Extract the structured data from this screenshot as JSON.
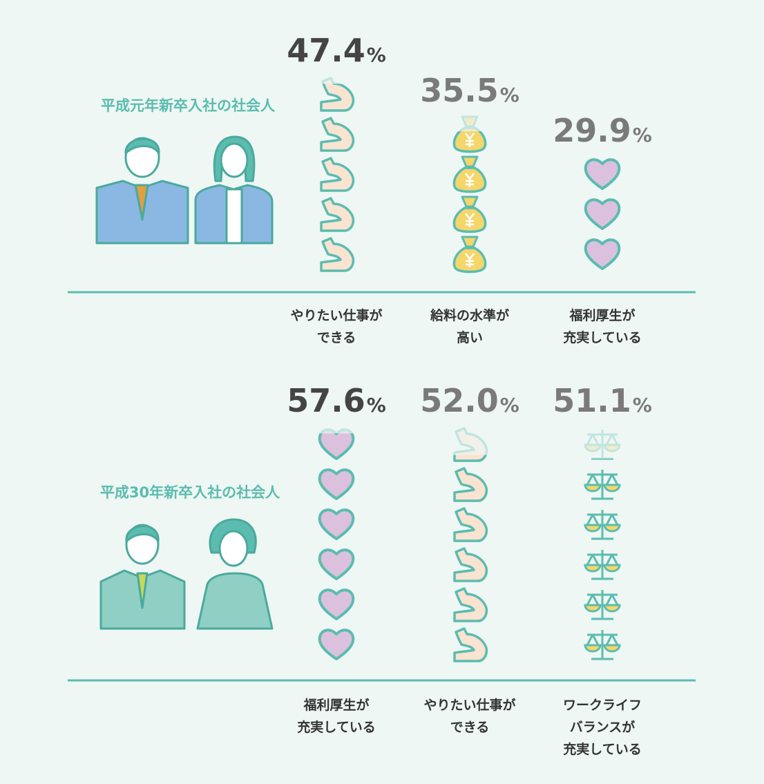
{
  "chart_data": [
    {
      "type": "pictogram",
      "title": "平成元年新卒入社の社会人",
      "categories": [
        "やりたい仕事が\nできる",
        "給料の水準が\n高い",
        "福利厚生が\n充実している"
      ],
      "values": [
        47.4,
        35.5,
        29.9
      ],
      "value_labels": [
        "47.4%",
        "35.5%",
        "29.9%"
      ]
    },
    {
      "type": "pictogram",
      "title": "平成30年新卒入社の社会人",
      "categories": [
        "福利厚生が\n充実している",
        "やりたい仕事が\nできる",
        "ワークライフ\nバランスが\n充実している"
      ],
      "values": [
        57.6,
        52.0,
        51.1
      ],
      "value_labels": [
        "57.6%",
        "52.0%",
        "51.1%"
      ]
    }
  ]
}
